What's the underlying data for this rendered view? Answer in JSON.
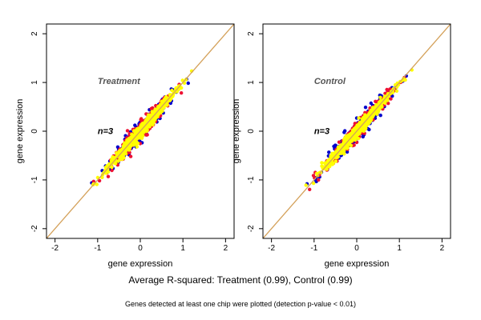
{
  "summary": "Average R-squared: Treatment (0.99), Control (0.99)",
  "footnote": "Genes detected at least one chip were plotted (detection p-value < 0.01)",
  "colors": {
    "identity_line": "#d4a15a",
    "axis": "#000000",
    "annotation": "#555555",
    "points": [
      "#0000cc",
      "#ee1133",
      "#ffff00"
    ]
  },
  "chart_data": [
    {
      "type": "scatter",
      "title": "",
      "annotations": [
        "Treatment",
        "n=3"
      ],
      "xlabel": "gene expression",
      "ylabel": "gene expression",
      "xlim": [
        -2.2,
        2.2
      ],
      "ylim": [
        -2.2,
        2.2
      ],
      "xticks": [
        -2,
        -1,
        0,
        1,
        2
      ],
      "yticks": [
        -2,
        -1,
        0,
        1,
        2
      ],
      "grid": false,
      "reference_line": "y = x",
      "n_replicates": 3,
      "points_range": [
        -1.1,
        1.3
      ]
    },
    {
      "type": "scatter",
      "title": "",
      "annotations": [
        "Control",
        "n=3"
      ],
      "xlabel": "gene expression",
      "ylabel": "gene expression",
      "xlim": [
        -2.2,
        2.2
      ],
      "ylim": [
        -2.2,
        2.2
      ],
      "xticks": [
        -2,
        -1,
        0,
        1,
        2
      ],
      "yticks": [
        -2,
        -1,
        0,
        1,
        2
      ],
      "grid": false,
      "reference_line": "y = x",
      "n_replicates": 3,
      "points_range": [
        -1.15,
        1.3
      ]
    }
  ]
}
